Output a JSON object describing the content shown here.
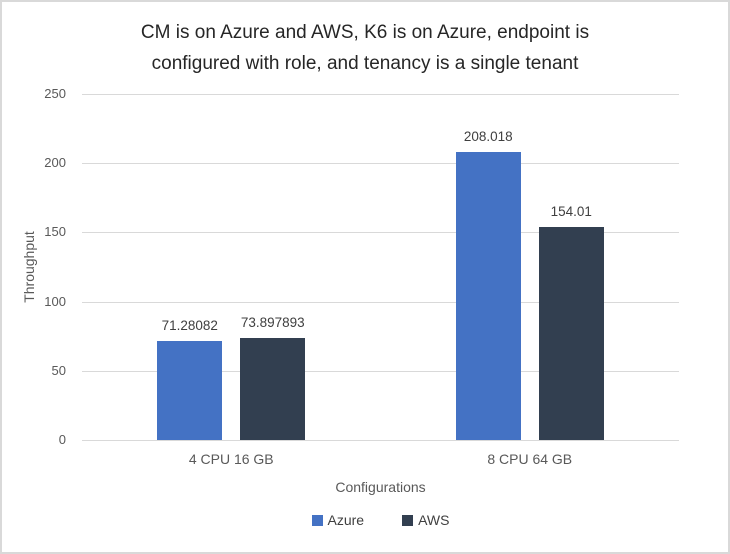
{
  "window": {
    "background": "#FFFFFF",
    "border_color": "#D9D9D9"
  },
  "chart": {
    "title_lines": [
      "CM is on Azure and AWS, K6 is on Azure, endpoint is",
      "configured with role, and tenancy is a single tenant"
    ]
  },
  "chart_data": {
    "type": "bar",
    "title": "CM is on Azure and AWS, K6 is on Azure, endpoint is configured with role, and tenancy is a single tenant",
    "categories": [
      "4 CPU 16 GB",
      "8 CPU 64 GB"
    ],
    "series": [
      {
        "name": "Azure",
        "color": "#4472C4",
        "values": [
          71.28082,
          208.018
        ],
        "labels": [
          "71.28082",
          "208.018"
        ]
      },
      {
        "name": "AWS",
        "color": "#323F50",
        "values": [
          73.897893,
          154.01
        ],
        "labels": [
          "73.897893",
          "154.01"
        ]
      }
    ],
    "xlabel": "Configurations",
    "ylabel": "Throughput",
    "ylim": [
      0,
      250
    ],
    "yticks": [
      0,
      50,
      100,
      150,
      200,
      250
    ],
    "grid": true,
    "legend_position": "bottom",
    "colors": {
      "gridline": "#D9D9D9",
      "axis_line": "#D9D9D9",
      "tick_label": "#595959",
      "axis_title": "#595959",
      "category_label": "#595959",
      "data_label": "#3F3F3F",
      "title": "#262626",
      "legend_label": "#404040"
    }
  }
}
